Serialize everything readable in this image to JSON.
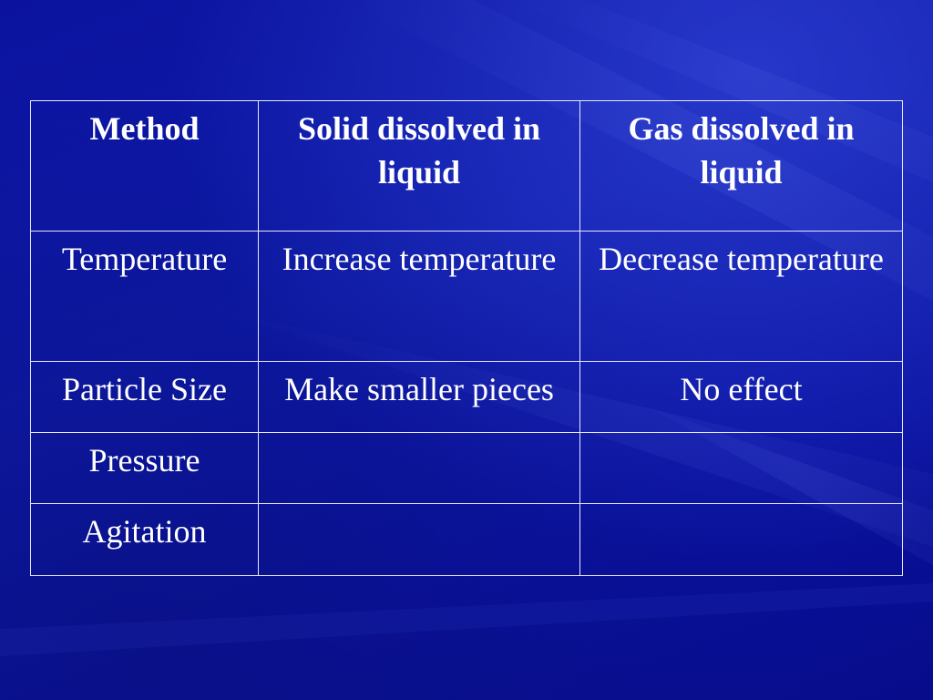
{
  "table": {
    "headers": [
      "Method",
      "Solid dissolved in liquid",
      "Gas dissolved in liquid"
    ],
    "rows": [
      [
        "Temperature",
        "Increase temperature",
        "Decrease temperature"
      ],
      [
        "Particle Size",
        "Make smaller pieces",
        "No effect"
      ],
      [
        "Pressure",
        "",
        ""
      ],
      [
        "Agitation",
        "",
        ""
      ]
    ]
  }
}
